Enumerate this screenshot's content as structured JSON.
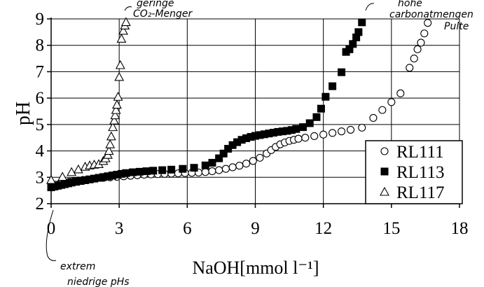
{
  "chart_data": {
    "type": "scatter",
    "title": "",
    "xlabel": "NaOH[mmol l⁻¹]",
    "ylabel": "pH",
    "xlim": [
      0,
      18
    ],
    "ylim": [
      2,
      9
    ],
    "x_ticks": [
      0,
      3,
      6,
      9,
      12,
      15,
      18
    ],
    "y_ticks": [
      2,
      3,
      4,
      5,
      6,
      7,
      8,
      9
    ],
    "grid": "horizontal and vertical",
    "legend_position": "right",
    "series": [
      {
        "name": "RL111",
        "marker": "circle-open",
        "points": [
          [
            0.0,
            2.68
          ],
          [
            0.2,
            2.72
          ],
          [
            0.4,
            2.76
          ],
          [
            0.6,
            2.8
          ],
          [
            0.8,
            2.83
          ],
          [
            1.0,
            2.86
          ],
          [
            1.2,
            2.88
          ],
          [
            1.4,
            2.9
          ],
          [
            1.6,
            2.92
          ],
          [
            1.8,
            2.94
          ],
          [
            2.0,
            2.96
          ],
          [
            2.3,
            2.98
          ],
          [
            2.6,
            3.0
          ],
          [
            2.9,
            3.02
          ],
          [
            3.2,
            3.04
          ],
          [
            3.5,
            3.06
          ],
          [
            3.8,
            3.08
          ],
          [
            4.1,
            3.1
          ],
          [
            4.4,
            3.11
          ],
          [
            4.7,
            3.12
          ],
          [
            5.0,
            3.13
          ],
          [
            5.3,
            3.14
          ],
          [
            5.6,
            3.15
          ],
          [
            5.9,
            3.16
          ],
          [
            6.2,
            3.17
          ],
          [
            6.5,
            3.18
          ],
          [
            6.8,
            3.2
          ],
          [
            7.1,
            3.23
          ],
          [
            7.4,
            3.27
          ],
          [
            7.7,
            3.32
          ],
          [
            8.0,
            3.38
          ],
          [
            8.3,
            3.44
          ],
          [
            8.6,
            3.52
          ],
          [
            8.9,
            3.62
          ],
          [
            9.2,
            3.74
          ],
          [
            9.5,
            3.9
          ],
          [
            9.7,
            4.03
          ],
          [
            9.9,
            4.15
          ],
          [
            10.1,
            4.25
          ],
          [
            10.3,
            4.32
          ],
          [
            10.5,
            4.38
          ],
          [
            10.7,
            4.42
          ],
          [
            10.9,
            4.46
          ],
          [
            11.2,
            4.5
          ],
          [
            11.6,
            4.56
          ],
          [
            12.0,
            4.62
          ],
          [
            12.4,
            4.68
          ],
          [
            12.8,
            4.74
          ],
          [
            13.2,
            4.8
          ],
          [
            13.7,
            4.88
          ],
          [
            14.2,
            5.25
          ],
          [
            14.6,
            5.55
          ],
          [
            15.0,
            5.85
          ],
          [
            15.4,
            6.18
          ],
          [
            15.8,
            7.15
          ],
          [
            16.0,
            7.5
          ],
          [
            16.15,
            7.85
          ],
          [
            16.3,
            8.1
          ],
          [
            16.45,
            8.45
          ],
          [
            16.6,
            8.85
          ]
        ]
      },
      {
        "name": "RL113",
        "marker": "square-filled",
        "points": [
          [
            0.0,
            2.62
          ],
          [
            0.15,
            2.65
          ],
          [
            0.3,
            2.68
          ],
          [
            0.45,
            2.71
          ],
          [
            0.6,
            2.74
          ],
          [
            0.75,
            2.77
          ],
          [
            0.9,
            2.8
          ],
          [
            1.1,
            2.83
          ],
          [
            1.3,
            2.86
          ],
          [
            1.5,
            2.89
          ],
          [
            1.7,
            2.92
          ],
          [
            1.9,
            2.95
          ],
          [
            2.1,
            2.98
          ],
          [
            2.3,
            3.01
          ],
          [
            2.5,
            3.04
          ],
          [
            2.7,
            3.07
          ],
          [
            2.9,
            3.1
          ],
          [
            3.1,
            3.13
          ],
          [
            3.3,
            3.16
          ],
          [
            3.6,
            3.19
          ],
          [
            3.9,
            3.21
          ],
          [
            4.2,
            3.23
          ],
          [
            4.5,
            3.25
          ],
          [
            4.9,
            3.27
          ],
          [
            5.3,
            3.29
          ],
          [
            5.8,
            3.32
          ],
          [
            6.3,
            3.36
          ],
          [
            6.8,
            3.45
          ],
          [
            7.1,
            3.55
          ],
          [
            7.4,
            3.72
          ],
          [
            7.6,
            3.9
          ],
          [
            7.8,
            4.08
          ],
          [
            8.0,
            4.22
          ],
          [
            8.2,
            4.33
          ],
          [
            8.4,
            4.42
          ],
          [
            8.6,
            4.48
          ],
          [
            8.8,
            4.53
          ],
          [
            9.0,
            4.57
          ],
          [
            9.2,
            4.6
          ],
          [
            9.4,
            4.63
          ],
          [
            9.6,
            4.66
          ],
          [
            9.8,
            4.69
          ],
          [
            10.0,
            4.72
          ],
          [
            10.2,
            4.74
          ],
          [
            10.4,
            4.76
          ],
          [
            10.6,
            4.79
          ],
          [
            10.8,
            4.83
          ],
          [
            11.1,
            4.9
          ],
          [
            11.4,
            5.05
          ],
          [
            11.7,
            5.28
          ],
          [
            11.9,
            5.6
          ],
          [
            12.1,
            6.05
          ],
          [
            12.4,
            6.45
          ],
          [
            12.8,
            6.98
          ],
          [
            13.0,
            7.75
          ],
          [
            13.15,
            7.85
          ],
          [
            13.3,
            8.05
          ],
          [
            13.45,
            8.3
          ],
          [
            13.55,
            8.5
          ],
          [
            13.7,
            8.87
          ]
        ]
      },
      {
        "name": "RL117",
        "marker": "triangle-open",
        "points": [
          [
            0.0,
            2.9
          ],
          [
            0.5,
            3.02
          ],
          [
            0.9,
            3.2
          ],
          [
            1.2,
            3.3
          ],
          [
            1.5,
            3.4
          ],
          [
            1.7,
            3.45
          ],
          [
            1.9,
            3.48
          ],
          [
            2.1,
            3.5
          ],
          [
            2.3,
            3.62
          ],
          [
            2.4,
            3.72
          ],
          [
            2.5,
            3.85
          ],
          [
            2.55,
            4.0
          ],
          [
            2.6,
            4.25
          ],
          [
            2.65,
            4.55
          ],
          [
            2.72,
            4.9
          ],
          [
            2.78,
            5.15
          ],
          [
            2.82,
            5.35
          ],
          [
            2.86,
            5.55
          ],
          [
            2.9,
            5.75
          ],
          [
            2.95,
            6.05
          ],
          [
            3.0,
            6.8
          ],
          [
            3.05,
            7.25
          ],
          [
            3.1,
            8.25
          ],
          [
            3.18,
            8.55
          ],
          [
            3.25,
            8.75
          ],
          [
            3.3,
            8.88
          ]
        ]
      }
    ]
  },
  "annotations": [
    {
      "id": "co2",
      "lines": [
        "geringe",
        "CO₂-Menger"
      ]
    },
    {
      "id": "carbonat",
      "lines": [
        "hohe",
        "carbonatmengen",
        "Pulte"
      ]
    },
    {
      "id": "extrem",
      "lines": [
        "extrem",
        "niedrige pHs"
      ]
    }
  ]
}
